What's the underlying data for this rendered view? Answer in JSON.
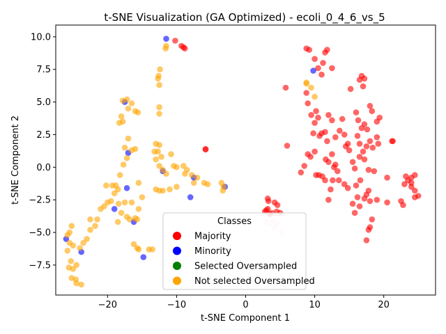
{
  "chart_data": {
    "type": "scatter",
    "title": "t-SNE Visualization (GA Optimized) - ecoli_0_4_6_vs_5",
    "xlabel": "t-SNE Component 1",
    "ylabel": "t-SNE Component 2",
    "xlim": [
      -27.5,
      27.5
    ],
    "ylim": [
      -9.8,
      10.9
    ],
    "xticks": [
      -20,
      -10,
      0,
      10,
      20
    ],
    "yticks": [
      -7.5,
      -5.0,
      -2.5,
      0.0,
      2.5,
      5.0,
      7.5,
      10.0
    ],
    "xtick_labels": [
      "−20",
      "−10",
      "0",
      "10",
      "20"
    ],
    "ytick_labels": [
      "−7.5",
      "−5.0",
      "−2.5",
      "0.0",
      "2.5",
      "5.0",
      "7.5",
      "10.0"
    ],
    "grid": false,
    "legend": {
      "title": "Classes",
      "placement": "bottom-center",
      "entries": [
        {
          "label": "Majority",
          "color": "#ff0000"
        },
        {
          "label": "Minority",
          "color": "#0000ff"
        },
        {
          "label": "Selected Oversampled",
          "color": "#008000"
        },
        {
          "label": "Not selected Oversampled",
          "color": "#ffa500"
        }
      ]
    },
    "series": [
      {
        "name": "Majority",
        "color": "#ff0000",
        "points": [
          [
            -10.2,
            9.7
          ],
          [
            -9.3,
            9.3
          ],
          [
            -9.0,
            9.2
          ],
          [
            -8.8,
            9.1
          ],
          [
            -5.8,
            1.4
          ],
          [
            -5.8,
            1.35
          ],
          [
            5.8,
            6.1
          ],
          [
            6.0,
            1.65
          ],
          [
            8.0,
            -0.4
          ],
          [
            8.5,
            0.1
          ],
          [
            8.8,
            9.1
          ],
          [
            9.2,
            9.0
          ],
          [
            10.0,
            8.3
          ],
          [
            10.5,
            7.6
          ],
          [
            11.2,
            8.0
          ],
          [
            11.5,
            8.8
          ],
          [
            11.8,
            9.0
          ],
          [
            12.5,
            7.6
          ],
          [
            11.0,
            7.1
          ],
          [
            8.8,
            5.7
          ],
          [
            9.0,
            4.9
          ],
          [
            9.5,
            4.0
          ],
          [
            10.0,
            3.4
          ],
          [
            10.2,
            4.3
          ],
          [
            10.5,
            3.8
          ],
          [
            9.8,
            2.6
          ],
          [
            10.7,
            2.4
          ],
          [
            11.0,
            2.6
          ],
          [
            11.5,
            2.7
          ],
          [
            11.8,
            2.0
          ],
          [
            9.0,
            1.0
          ],
          [
            9.4,
            0.8
          ],
          [
            10.0,
            1.2
          ],
          [
            10.2,
            -0.6
          ],
          [
            10.6,
            -0.6
          ],
          [
            11.1,
            -0.7
          ],
          [
            11.6,
            0.6
          ],
          [
            12.0,
            0.4
          ],
          [
            12.5,
            1.0
          ],
          [
            12.8,
            0.0
          ],
          [
            13.0,
            0.2
          ],
          [
            13.3,
            -0.3
          ],
          [
            12.0,
            4.0
          ],
          [
            12.5,
            3.6
          ],
          [
            13.0,
            2.3
          ],
          [
            13.6,
            2.8
          ],
          [
            14.0,
            3.7
          ],
          [
            14.3,
            2.5
          ],
          [
            14.5,
            1.6
          ],
          [
            14.8,
            1.8
          ],
          [
            15.0,
            1.3
          ],
          [
            15.5,
            0.4
          ],
          [
            15.8,
            -0.1
          ],
          [
            15.2,
            6.0
          ],
          [
            16.5,
            6.7
          ],
          [
            16.8,
            7.0
          ],
          [
            17.2,
            6.8
          ],
          [
            17.0,
            6.2
          ],
          [
            16.0,
            4.2
          ],
          [
            16.3,
            3.6
          ],
          [
            16.8,
            3.0
          ],
          [
            17.2,
            3.3
          ],
          [
            17.6,
            2.9
          ],
          [
            18.0,
            4.7
          ],
          [
            18.3,
            4.3
          ],
          [
            19.0,
            3.5
          ],
          [
            19.4,
            3.8
          ],
          [
            16.2,
            2.4
          ],
          [
            16.5,
            1.8
          ],
          [
            17.0,
            1.2
          ],
          [
            17.5,
            1.6
          ],
          [
            18.0,
            2.0
          ],
          [
            18.4,
            1.5
          ],
          [
            19.0,
            2.3
          ],
          [
            19.2,
            1.8
          ],
          [
            16.5,
            0.8
          ],
          [
            17.2,
            0.6
          ],
          [
            17.8,
            -0.2
          ],
          [
            18.6,
            -0.3
          ],
          [
            20.5,
            -0.8
          ],
          [
            21.2,
            2.0
          ],
          [
            21.3,
            2.0
          ],
          [
            11.5,
            -1.0
          ],
          [
            12.0,
            -2.5
          ],
          [
            12.3,
            -1.7
          ],
          [
            12.6,
            -1.0
          ],
          [
            13.5,
            -1.0
          ],
          [
            14.3,
            -1.3
          ],
          [
            14.8,
            -1.6
          ],
          [
            15.5,
            -2.8
          ],
          [
            16.0,
            -1.4
          ],
          [
            16.2,
            -2.3
          ],
          [
            16.6,
            -1.0
          ],
          [
            17.2,
            -2.4
          ],
          [
            17.5,
            -2.1
          ],
          [
            17.8,
            -1.8
          ],
          [
            18.0,
            -2.6
          ],
          [
            18.3,
            -4.0
          ],
          [
            17.8,
            -4.8
          ],
          [
            17.5,
            -5.6
          ],
          [
            16.5,
            -3.0
          ],
          [
            15.8,
            -3.5
          ],
          [
            18.0,
            -4.6
          ],
          [
            19.0,
            -2.5
          ],
          [
            20.5,
            -2.7
          ],
          [
            22.5,
            -2.6
          ],
          [
            23.0,
            -1.3
          ],
          [
            23.5,
            -1.0
          ],
          [
            24.0,
            -0.8
          ],
          [
            24.5,
            -0.6
          ],
          [
            24.0,
            -1.5
          ],
          [
            24.5,
            -2.3
          ],
          [
            25.0,
            -2.2
          ],
          [
            24.5,
            -1.8
          ],
          [
            24.0,
            -1.2
          ],
          [
            22.8,
            -2.9
          ],
          [
            23.2,
            -0.7
          ],
          [
            3.0,
            -3.3
          ],
          [
            3.2,
            -3.2
          ],
          [
            3.2,
            -2.4
          ],
          [
            3.8,
            -3.5
          ],
          [
            4.2,
            -2.7
          ],
          [
            4.6,
            -2.9
          ],
          [
            4.5,
            -3.4
          ],
          [
            5.0,
            -3.5
          ],
          [
            3.5,
            -3.6
          ],
          [
            3.3,
            -2.6
          ],
          [
            2.8,
            -3.4
          ]
        ]
      },
      {
        "name": "Minority",
        "color": "#0000ff",
        "points": [
          [
            -11.5,
            9.85
          ],
          [
            9.8,
            7.4
          ],
          [
            -17.5,
            5.0
          ],
          [
            -17.0,
            1.1
          ],
          [
            -12.0,
            -0.3
          ],
          [
            -7.5,
            -0.8
          ],
          [
            -3.0,
            -1.5
          ],
          [
            -17.2,
            -1.6
          ],
          [
            -19.0,
            -3.2
          ],
          [
            -16.2,
            -4.2
          ],
          [
            -8.0,
            -2.3
          ],
          [
            -26.0,
            -5.5
          ],
          [
            -23.8,
            -6.5
          ],
          [
            -14.8,
            -6.9
          ]
        ]
      },
      {
        "name": "Selected Oversampled",
        "color": "#008000",
        "points": []
      },
      {
        "name": "Not selected Oversampled",
        "color": "#ffa500",
        "points": [
          [
            -11.5,
            9.3
          ],
          [
            -11.6,
            9.1
          ],
          [
            -12.4,
            7.5
          ],
          [
            -12.6,
            7.0
          ],
          [
            -12.7,
            6.8
          ],
          [
            -12.5,
            6.3
          ],
          [
            -12.5,
            4.6
          ],
          [
            -12.5,
            4.1
          ],
          [
            -17.8,
            5.1
          ],
          [
            -17.2,
            5.2
          ],
          [
            -17.0,
            4.5
          ],
          [
            -16.5,
            4.9
          ],
          [
            -16.0,
            4.3
          ],
          [
            -15.6,
            4.2
          ],
          [
            -18.0,
            3.9
          ],
          [
            -17.8,
            3.5
          ],
          [
            -18.3,
            3.4
          ],
          [
            -17.0,
            2.2
          ],
          [
            -17.5,
            1.5
          ],
          [
            -16.5,
            1.3
          ],
          [
            -16.0,
            1.4
          ],
          [
            -17.2,
            0.7
          ],
          [
            -17.7,
            0.2
          ],
          [
            -18.2,
            -0.6
          ],
          [
            -18.8,
            -1.4
          ],
          [
            -13.2,
            1.2
          ],
          [
            -13.0,
            1.8
          ],
          [
            -12.5,
            1.7
          ],
          [
            -12.7,
            1.2
          ],
          [
            -12.2,
            0.8
          ],
          [
            -13.0,
            0.6
          ],
          [
            -12.5,
            0.1
          ],
          [
            -12.0,
            -0.2
          ],
          [
            -10.8,
            1.0
          ],
          [
            -11.5,
            -0.5
          ],
          [
            -10.0,
            0.0
          ],
          [
            -10.4,
            0.1
          ],
          [
            -9.0,
            0.1
          ],
          [
            -8.5,
            -0.2
          ],
          [
            -8.8,
            -0.5
          ],
          [
            -7.8,
            -0.6
          ],
          [
            -7.0,
            -0.8
          ],
          [
            -13.0,
            -1.7
          ],
          [
            -12.5,
            -1.8
          ],
          [
            -12.0,
            -1.8
          ],
          [
            -11.0,
            -1.7
          ],
          [
            -10.0,
            -1.5
          ],
          [
            -7.5,
            -1.2
          ],
          [
            -6.0,
            -1.2
          ],
          [
            -5.5,
            -1.3
          ],
          [
            -3.5,
            -1.2
          ],
          [
            -3.3,
            -1.8
          ],
          [
            -3.2,
            -1.5
          ],
          [
            -19.3,
            -1.4
          ],
          [
            -20.2,
            -1.4
          ],
          [
            -18.5,
            -1.7
          ],
          [
            -19.0,
            -2.0
          ],
          [
            -19.5,
            -2.6
          ],
          [
            -20.0,
            -2.7
          ],
          [
            -20.5,
            -3.0
          ],
          [
            -21.0,
            -3.2
          ],
          [
            -18.4,
            -2.8
          ],
          [
            -17.5,
            -2.7
          ],
          [
            -16.5,
            -2.7
          ],
          [
            -15.5,
            -3.2
          ],
          [
            -15.0,
            -2.3
          ],
          [
            -15.5,
            -1.2
          ],
          [
            -18.0,
            -3.5
          ],
          [
            -17.2,
            -3.8
          ],
          [
            -16.8,
            -4.0
          ],
          [
            -16.0,
            -3.9
          ],
          [
            -15.7,
            -4.0
          ],
          [
            -18.5,
            -4.2
          ],
          [
            -21.5,
            -4.0
          ],
          [
            -21.8,
            -4.5
          ],
          [
            -22.5,
            -4.8
          ],
          [
            -22.5,
            -4.0
          ],
          [
            -16.2,
            -5.9
          ],
          [
            -15.7,
            -6.2
          ],
          [
            -15.5,
            -6.3
          ],
          [
            -14.0,
            -6.3
          ],
          [
            -13.5,
            -6.3
          ],
          [
            -25.2,
            -4.5
          ],
          [
            -25.5,
            -5.0
          ],
          [
            -25.8,
            -5.2
          ],
          [
            -25.5,
            -5.8
          ],
          [
            -25.0,
            -6.0
          ],
          [
            -25.3,
            -7.2
          ],
          [
            -24.5,
            -7.5
          ],
          [
            -24.0,
            -6.2
          ],
          [
            -23.5,
            -5.8
          ],
          [
            -23.0,
            -5.5
          ],
          [
            -25.8,
            -6.4
          ],
          [
            -25.6,
            -7.7
          ],
          [
            -25.0,
            -7.8
          ],
          [
            -25.2,
            -8.5
          ],
          [
            -24.6,
            -8.6
          ],
          [
            -24.5,
            -8.9
          ],
          [
            -23.8,
            -9.0
          ],
          [
            8.8,
            6.5
          ],
          [
            8.8,
            6.4
          ],
          [
            9.5,
            6.1
          ],
          [
            10.0,
            5.4
          ]
        ]
      },
      {
        "name": "",
        "color": "#ffd0d0",
        "points": [
          [
            3.0,
            -4.2
          ],
          [
            3.5,
            -4.3
          ],
          [
            4.0,
            -4.1
          ],
          [
            4.5,
            -4.3
          ],
          [
            4.2,
            -4.6
          ],
          [
            5.2,
            -5.0
          ]
        ]
      }
    ]
  }
}
